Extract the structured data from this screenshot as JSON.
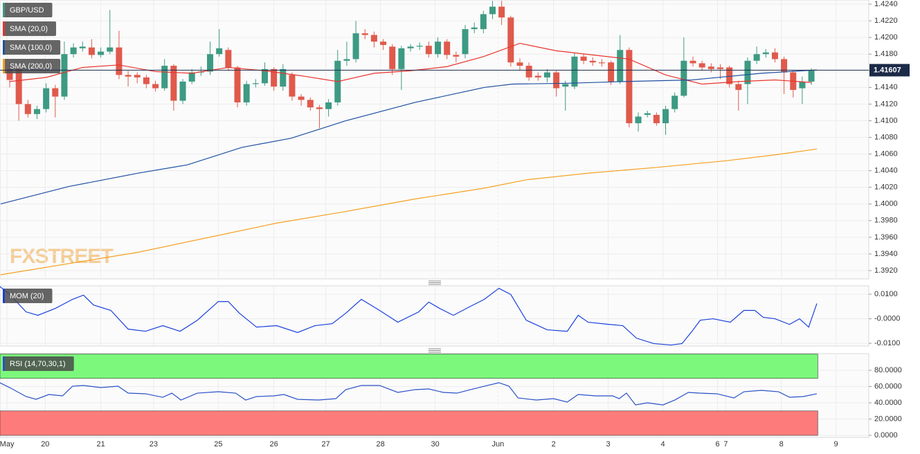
{
  "chart_data": [
    {
      "type": "candlestick",
      "name": "GBP/USD",
      "color_up": "#3d9a83",
      "color_down": "#e05a4c",
      "watermark": "FXSTREET",
      "last_price": 1.41607,
      "xlim": [
        -1.064,
        94.3
      ],
      "ylim": [
        1.391,
        1.4245
      ],
      "yticks": [
        {
          "value": 1.392,
          "label": "1.3920"
        },
        {
          "value": 1.394,
          "label": "1.3940"
        },
        {
          "value": 1.396,
          "label": "1.3960"
        },
        {
          "value": 1.398,
          "label": "1.3980"
        },
        {
          "value": 1.4,
          "label": "1.4000"
        },
        {
          "value": 1.402,
          "label": "1.4020"
        },
        {
          "value": 1.404,
          "label": "1.4040"
        },
        {
          "value": 1.406,
          "label": "1.4060"
        },
        {
          "value": 1.408,
          "label": "1.4080"
        },
        {
          "value": 1.41,
          "label": "1.4100"
        },
        {
          "value": 1.412,
          "label": "1.4120"
        },
        {
          "value": 1.414,
          "label": "1.4140"
        },
        {
          "value": 1.416,
          "label": "1.4160"
        },
        {
          "value": 1.418,
          "label": "1.4180"
        },
        {
          "value": 1.42,
          "label": "1.4200"
        },
        {
          "value": 1.422,
          "label": "1.4220"
        },
        {
          "value": 1.424,
          "label": "1.4240"
        }
      ],
      "open": [
        1.4162,
        1.4162,
        1.412,
        1.4108,
        1.4114,
        1.4139,
        1.4129,
        1.418,
        1.4187,
        1.4188,
        1.4179,
        1.4183,
        1.4188,
        1.4155,
        1.4155,
        1.4152,
        1.4144,
        1.4139,
        1.4166,
        1.4124,
        1.4147,
        1.4158,
        1.4159,
        1.418,
        1.4185,
        1.4164,
        1.4122,
        1.4144,
        1.4145,
        1.4162,
        1.4141,
        1.4155,
        1.4129,
        1.4125,
        1.4116,
        1.4114,
        1.4122,
        1.4172,
        1.4174,
        1.4205,
        1.4203,
        1.4195,
        1.4189,
        1.4162,
        1.4187,
        1.4189,
        1.419,
        1.418,
        1.4195,
        1.4179,
        1.418,
        1.421,
        1.421,
        1.4228,
        1.4237,
        1.4224,
        1.417,
        1.4166,
        1.4154,
        1.4152,
        1.4158,
        1.4141,
        1.4141,
        1.4177,
        1.4172,
        1.417,
        1.417,
        1.4147,
        1.4185,
        1.4097,
        1.4107,
        1.4107,
        1.4097,
        1.4114,
        1.413,
        1.4172,
        1.4169,
        1.4165,
        1.4164,
        1.4164,
        1.4144,
        1.4144,
        1.4172,
        1.418,
        1.4182,
        1.4174,
        1.4158,
        1.4139,
        1.4147
      ],
      "high": [
        1.417,
        1.4167,
        1.4125,
        1.4118,
        1.4145,
        1.4143,
        1.4195,
        1.4193,
        1.4195,
        1.4198,
        1.4188,
        1.4233,
        1.4208,
        1.416,
        1.4158,
        1.4155,
        1.4148,
        1.4174,
        1.4168,
        1.415,
        1.4162,
        1.4165,
        1.4195,
        1.421,
        1.4188,
        1.4166,
        1.4148,
        1.415,
        1.417,
        1.4164,
        1.4168,
        1.4158,
        1.4132,
        1.4128,
        1.4119,
        1.4126,
        1.4185,
        1.4195,
        1.422,
        1.421,
        1.4207,
        1.4198,
        1.4192,
        1.419,
        1.4192,
        1.4194,
        1.4195,
        1.42,
        1.4198,
        1.4183,
        1.4215,
        1.4218,
        1.4232,
        1.4244,
        1.4244,
        1.4226,
        1.4175,
        1.417,
        1.4158,
        1.4162,
        1.416,
        1.4148,
        1.4182,
        1.418,
        1.4176,
        1.4174,
        1.4172,
        1.4203,
        1.4188,
        1.411,
        1.4112,
        1.411,
        1.4118,
        1.4134,
        1.42,
        1.4177,
        1.4172,
        1.4169,
        1.4168,
        1.4166,
        1.4148,
        1.4176,
        1.4189,
        1.4186,
        1.4187,
        1.4177,
        1.416,
        1.4153,
        1.4163
      ],
      "low": [
        1.414,
        1.41,
        1.4104,
        1.4102,
        1.411,
        1.4104,
        1.4125,
        1.4176,
        1.4183,
        1.4175,
        1.4176,
        1.418,
        1.415,
        1.4141,
        1.4145,
        1.4139,
        1.4135,
        1.4136,
        1.4112,
        1.412,
        1.4144,
        1.4154,
        1.4155,
        1.4177,
        1.416,
        1.4116,
        1.4118,
        1.414,
        1.4142,
        1.4136,
        1.4136,
        1.4124,
        1.4118,
        1.4112,
        1.4091,
        1.4105,
        1.4118,
        1.4166,
        1.417,
        1.4198,
        1.4188,
        1.4185,
        1.4155,
        1.4137,
        1.4183,
        1.4185,
        1.4176,
        1.4176,
        1.4174,
        1.417,
        1.4175,
        1.4205,
        1.4205,
        1.4222,
        1.4215,
        1.4165,
        1.416,
        1.4148,
        1.4148,
        1.4146,
        1.4129,
        1.4112,
        1.4138,
        1.4168,
        1.4166,
        1.4165,
        1.4143,
        1.4144,
        1.4092,
        1.4087,
        1.4104,
        1.4094,
        1.4083,
        1.411,
        1.4128,
        1.4165,
        1.416,
        1.4158,
        1.415,
        1.414,
        1.4112,
        1.412,
        1.4168,
        1.4176,
        1.417,
        1.4132,
        1.4128,
        1.412,
        1.4143
      ],
      "close": [
        1.4149,
        1.412,
        1.4108,
        1.4114,
        1.4139,
        1.4129,
        1.418,
        1.4188,
        1.4189,
        1.4179,
        1.4183,
        1.4188,
        1.4155,
        1.4153,
        1.4152,
        1.4144,
        1.4139,
        1.4166,
        1.4124,
        1.4147,
        1.4158,
        1.4159,
        1.418,
        1.4187,
        1.4164,
        1.4122,
        1.4144,
        1.4145,
        1.4162,
        1.4141,
        1.4162,
        1.4129,
        1.4125,
        1.4116,
        1.4114,
        1.4122,
        1.4172,
        1.4174,
        1.4205,
        1.4203,
        1.4195,
        1.4191,
        1.4162,
        1.4187,
        1.4189,
        1.419,
        1.418,
        1.4195,
        1.4179,
        1.4177,
        1.421,
        1.4212,
        1.4228,
        1.4237,
        1.4224,
        1.417,
        1.4166,
        1.4152,
        1.4152,
        1.4158,
        1.4139,
        1.4144,
        1.4177,
        1.4172,
        1.417,
        1.4169,
        1.4147,
        1.4185,
        1.4097,
        1.4105,
        1.4109,
        1.4097,
        1.4114,
        1.413,
        1.4172,
        1.4169,
        1.4164,
        1.4162,
        1.4162,
        1.4144,
        1.4137,
        1.4172,
        1.418,
        1.4182,
        1.4174,
        1.4158,
        1.4137,
        1.4147,
        1.41607
      ],
      "series": [
        {
          "name": "SMA (20,0)",
          "color": "#e8342c",
          "x": [
            0,
            4,
            8,
            12,
            16,
            20,
            24,
            28,
            32,
            36,
            40,
            44,
            48,
            52,
            56,
            60,
            64,
            68,
            72,
            76,
            80,
            84,
            88
          ],
          "values": [
            1.4147,
            1.4152,
            1.4164,
            1.4167,
            1.4159,
            1.4157,
            1.4164,
            1.416,
            1.4154,
            1.4147,
            1.4157,
            1.416,
            1.4165,
            1.4177,
            1.4193,
            1.4184,
            1.4179,
            1.4174,
            1.4155,
            1.4144,
            1.4147,
            1.4149,
            1.4146
          ]
        },
        {
          "name": "SMA (100,0)",
          "color": "#1f4fa0",
          "x": [
            -1,
            6.5,
            14.1,
            19.5,
            25.5,
            30.9,
            36.9,
            44.5,
            52.1,
            55.2,
            61.2,
            67.3,
            74.9,
            82.5,
            88.6
          ],
          "values": [
            1.4,
            1.4021,
            1.4037,
            1.4047,
            1.4068,
            1.4079,
            1.41,
            1.4122,
            1.414,
            1.4144,
            1.4145,
            1.4147,
            1.4149,
            1.4157,
            1.4161
          ]
        },
        {
          "name": "SMA (200,0)",
          "color": "#f5a020",
          "x": [
            -1,
            14.1,
            29.3,
            36.9,
            44.5,
            52.1,
            56.7,
            63.5,
            71.1,
            78.7,
            84,
            88.6
          ],
          "values": [
            1.3915,
            1.3942,
            1.3977,
            1.3991,
            1.4006,
            1.4019,
            1.4029,
            1.4037,
            1.4044,
            1.4052,
            1.4059,
            1.4066
          ]
        }
      ]
    },
    {
      "type": "line",
      "xlim": [
        -1.064,
        94.3
      ],
      "ylim": [
        -0.0111,
        0.0134
      ],
      "yticks": [
        {
          "value": 0.01,
          "label": "0.0100"
        },
        {
          "value": 0,
          "label": "-0.0000"
        },
        {
          "value": -0.01,
          "label": "-0.0100"
        }
      ],
      "series": [
        {
          "name": "MOM (20)",
          "color": "#1a3fdc",
          "x": [
            -1.1,
            0,
            1.8,
            3.1,
            5.0,
            6.9,
            8.1,
            9.2,
            11.1,
            13.0,
            14.9,
            16.8,
            18.7,
            20.6,
            22.9,
            24.0,
            25.2,
            27.1,
            29.3,
            31.6,
            33.5,
            35.4,
            36.9,
            38.6,
            40.6,
            42.6,
            44.9,
            46.0,
            47.2,
            48.7,
            50.6,
            52.1,
            53.7,
            55.0,
            56.7,
            59.0,
            61.2,
            62.4,
            63.5,
            65.8,
            67.3,
            68.8,
            70.7,
            72.6,
            73.8,
            74.9,
            75.8,
            77.2,
            79.1,
            80.6,
            81.8,
            82.7,
            84.0,
            85.6,
            86.7,
            87.7,
            88.6
          ],
          "values": [
            0.0132,
            0.0099,
            0.0028,
            0.0014,
            0.0042,
            0.0079,
            0.0096,
            0.0056,
            0.0034,
            -0.0042,
            -0.0051,
            -0.0028,
            -0.0051,
            -0.0006,
            0.007,
            0.007,
            0.0023,
            -0.0034,
            -0.0028,
            -0.0056,
            -0.0028,
            -0.002,
            0.0023,
            0.0079,
            0.0034,
            -0.0014,
            0.0028,
            0.0068,
            0.0042,
            0.0014,
            0.0051,
            0.0079,
            0.0124,
            0.0099,
            -0.0006,
            -0.0045,
            -0.0051,
            0.0014,
            -0.0014,
            -0.0023,
            -0.0028,
            -0.0079,
            -0.0101,
            -0.0107,
            -0.0101,
            -0.0051,
            -0.0006,
            0.0,
            -0.0014,
            0.0034,
            0.0034,
            0.0006,
            0.0,
            -0.0023,
            0.0,
            -0.0034,
            0.0062
          ]
        }
      ]
    },
    {
      "type": "line",
      "xlim": [
        -1.064,
        94.3
      ],
      "ylim": [
        -2.5,
        100.4
      ],
      "yticks": [
        {
          "value": 80,
          "label": "80.0000"
        },
        {
          "value": 60,
          "label": "60.0000"
        },
        {
          "value": 40,
          "label": "40.0000"
        },
        {
          "value": 20,
          "label": "20.0000"
        },
        {
          "value": 0,
          "label": "0.0000"
        }
      ],
      "zones": [
        {
          "from": 70,
          "to": 100,
          "color": "#7cf87c",
          "x_end": 88.7
        },
        {
          "from": 0,
          "to": 30,
          "color": "#fd7b7b",
          "x_end": 88.7
        }
      ],
      "xticks": [
        {
          "value": -0.3,
          "label": "May"
        },
        {
          "value": 3.9,
          "label": "20"
        },
        {
          "value": 10.0,
          "label": "21"
        },
        {
          "value": 15.8,
          "label": "23"
        },
        {
          "value": 22.9,
          "label": "25"
        },
        {
          "value": 29.0,
          "label": "26"
        },
        {
          "value": 34.7,
          "label": "27"
        },
        {
          "value": 40.7,
          "label": "28"
        },
        {
          "value": 46.7,
          "label": "30"
        },
        {
          "value": 53.6,
          "label": "Jun"
        },
        {
          "value": 59.7,
          "label": "2"
        },
        {
          "value": 65.7,
          "label": "3"
        },
        {
          "value": 71.7,
          "label": "4"
        },
        {
          "value": 77.7,
          "label": "6"
        },
        {
          "value": 78.6,
          "label": "7"
        },
        {
          "value": 84.7,
          "label": "8"
        },
        {
          "value": 90.7,
          "label": "9"
        }
      ],
      "series": [
        {
          "name": "RSI (14,70,30,1)",
          "color": "#2a50c8",
          "x": [
            -1.1,
            0,
            1.8,
            2.9,
            4.3,
            5.8,
            6.9,
            8.1,
            10.0,
            11.9,
            13.0,
            14.9,
            16.8,
            17.8,
            18.8,
            20.6,
            22.9,
            24.8,
            25.9,
            27.1,
            29.0,
            30.1,
            31.6,
            33.9,
            35.8,
            36.9,
            38.6,
            40.6,
            42.6,
            44.5,
            46.0,
            47.6,
            49.1,
            50.6,
            52.1,
            53.7,
            54.8,
            55.8,
            57.8,
            59.7,
            61.2,
            62.4,
            64.3,
            66.2,
            66.9,
            67.7,
            68.7,
            70.0,
            71.7,
            73.0,
            74.5,
            75.7,
            77.6,
            79.5,
            80.6,
            82.5,
            84.4,
            85.6,
            87.1,
            88.6
          ],
          "values": [
            64.7,
            58.7,
            47.7,
            44.3,
            50.2,
            48.5,
            60.4,
            61.3,
            58.7,
            60.4,
            51.9,
            51.1,
            46.8,
            51.9,
            43.4,
            51.9,
            53.6,
            51.9,
            43.4,
            47.7,
            48.5,
            50.2,
            44.3,
            43.4,
            45.1,
            56.2,
            61.3,
            61.3,
            52.8,
            56.2,
            57.0,
            52.8,
            51.9,
            56.2,
            60.4,
            64.7,
            60.4,
            46.0,
            43.4,
            45.1,
            40.9,
            50.2,
            48.5,
            48.5,
            45.1,
            51.9,
            37.4,
            40.0,
            37.4,
            43.4,
            52.8,
            51.9,
            51.1,
            46.0,
            53.6,
            55.3,
            53.6,
            46.8,
            47.7,
            51.1
          ]
        }
      ]
    }
  ]
}
